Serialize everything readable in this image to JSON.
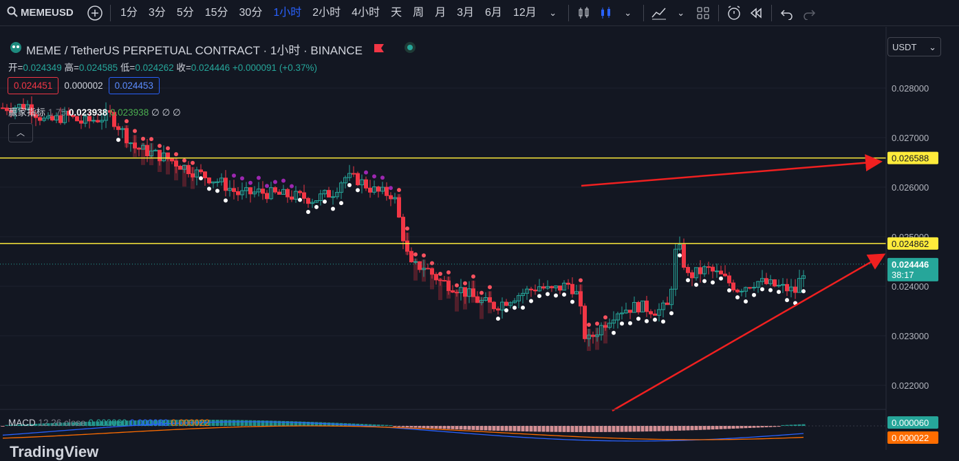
{
  "toolbar": {
    "symbol": "MEMEUSD",
    "timeframes": [
      "1分",
      "3分",
      "5分",
      "15分",
      "30分",
      "1小时",
      "2小时",
      "4小时",
      "天",
      "周",
      "月",
      "3月",
      "6月",
      "12月"
    ],
    "active_timeframe": "1小时"
  },
  "legend": {
    "title": "MEME / TetherUS PERPETUAL CONTRACT · 1小时 · BINANCE",
    "open_label": "开=",
    "open": "0.024349",
    "high_label": "高=",
    "high": "0.024585",
    "low_label": "低=",
    "low": "0.024262",
    "close_label": "收=",
    "close": "0.024446",
    "change": "+0.000091 (+0.37%)",
    "bid": "0.024451",
    "spread": "0.000002",
    "ask": "0.024453",
    "indicator_name": "赢家指标",
    "indicator_params": "1 75",
    "indicator_val1": "0.023938",
    "indicator_val2": "0.023938",
    "indicator_rest": "∅ ∅ ∅"
  },
  "price_axis": {
    "currency": "USDT",
    "ticks": [
      "0.028000",
      "0.027000",
      "0.026000",
      "0.025000",
      "0.024000",
      "0.023000",
      "0.022000"
    ],
    "line1_label": "0.026588",
    "line2_label": "0.024862",
    "last_price": "0.024446",
    "countdown": "38:17",
    "macd_val": "0.000060",
    "signal_val": "0.000022"
  },
  "macd": {
    "name": "MACD",
    "params": "12 26 close",
    "hist": "0.000060",
    "macd": "0.000082",
    "signal": "0.000022"
  },
  "watermark": "TradingView",
  "colors": {
    "up": "#26a69a",
    "down": "#f23645",
    "line": "#ffeb3b",
    "arrow": "#f02020"
  }
}
